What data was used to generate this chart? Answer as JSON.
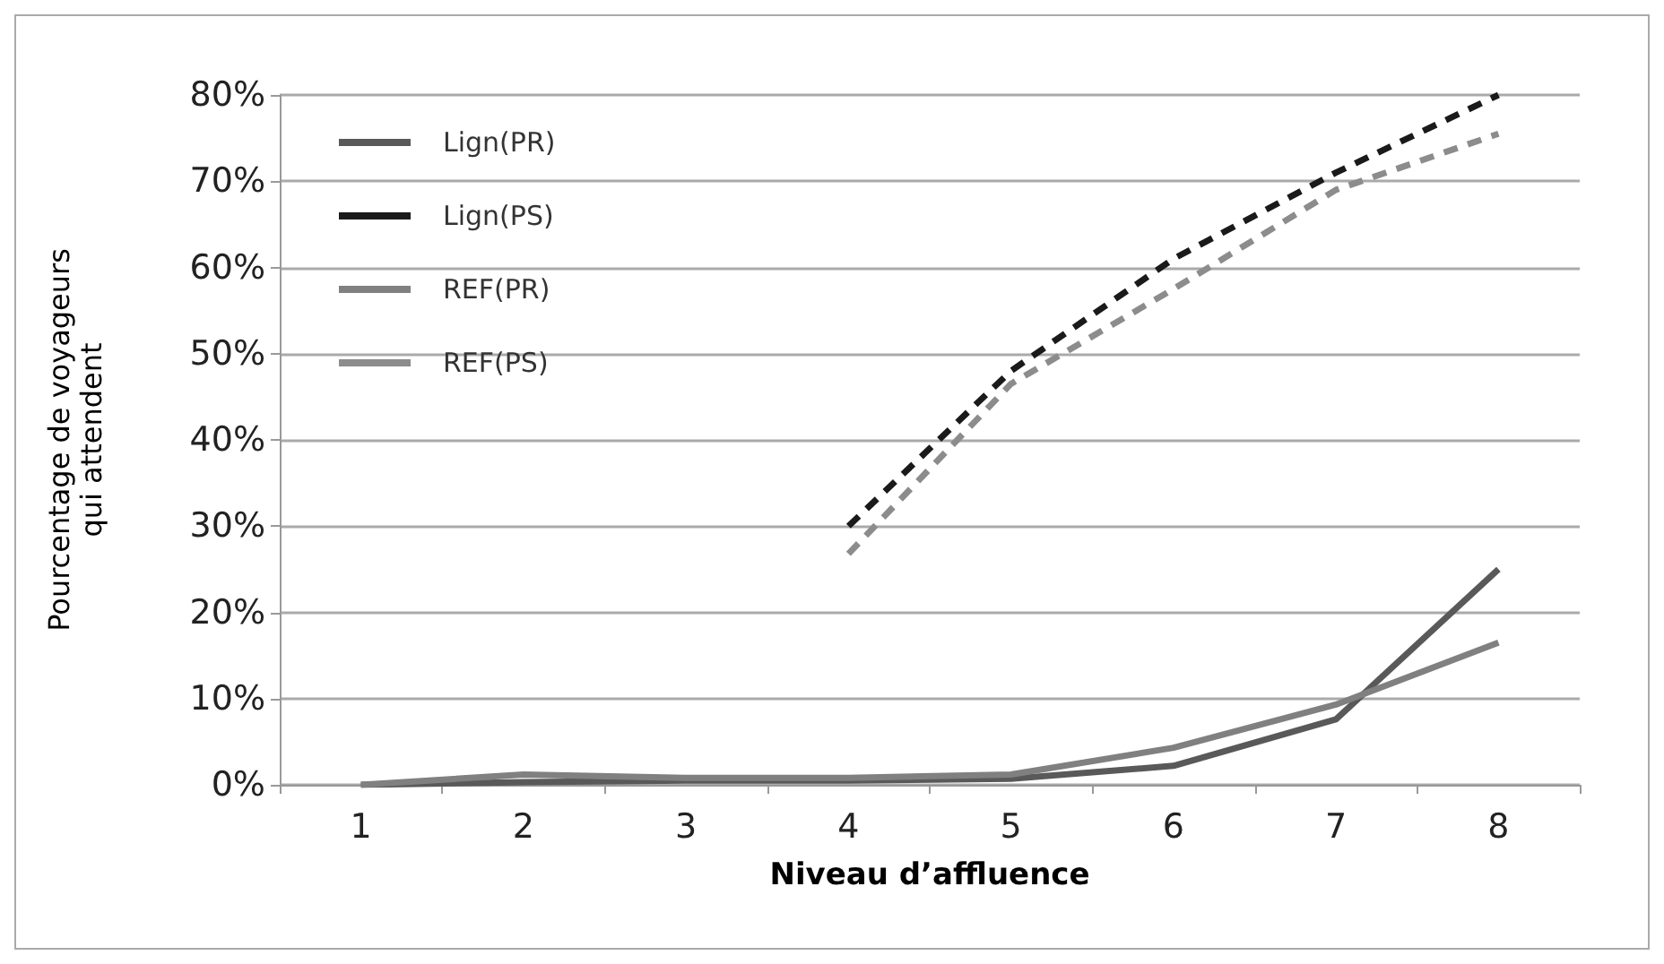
{
  "chart_data": {
    "type": "line",
    "xlabel": "Niveau d’affluence",
    "ylabel": "Pourcentage de voyageurs\nqui attendent",
    "categories": [
      "1",
      "2",
      "3",
      "4",
      "5",
      "6",
      "7",
      "8"
    ],
    "series": [
      {
        "name": "Lign(PR)",
        "color": "#595959",
        "line_style": "solid",
        "values": [
          0,
          0.3,
          0.5,
          0.5,
          0.7,
          2.2,
          7.6,
          25
        ]
      },
      {
        "name": "Lign(PS)",
        "color": "#1a1a1a",
        "line_style": "dashed",
        "values": [
          null,
          null,
          null,
          30,
          48,
          61,
          71,
          80
        ]
      },
      {
        "name": "REF(PR)",
        "color": "#808080",
        "line_style": "solid",
        "values": [
          0,
          1.2,
          0.8,
          0.8,
          1.2,
          4.3,
          9.3,
          16.5
        ]
      },
      {
        "name": "REF(PS)",
        "color": "#8c8c8c",
        "line_style": "dashed",
        "values": [
          null,
          null,
          null,
          26.8,
          46.5,
          57.5,
          69,
          75.5
        ]
      }
    ],
    "ylim": [
      0,
      80
    ],
    "yticks": [
      {
        "value": 0,
        "label": "0%"
      },
      {
        "value": 10,
        "label": "10%"
      },
      {
        "value": 20,
        "label": "20%"
      },
      {
        "value": 30,
        "label": "30%"
      },
      {
        "value": 40,
        "label": "40%"
      },
      {
        "value": 50,
        "label": "50%"
      },
      {
        "value": 60,
        "label": "60%"
      },
      {
        "value": 70,
        "label": "70%"
      },
      {
        "value": 80,
        "label": "80%"
      }
    ],
    "grid": "y",
    "legend": "top left",
    "marker": "none"
  }
}
